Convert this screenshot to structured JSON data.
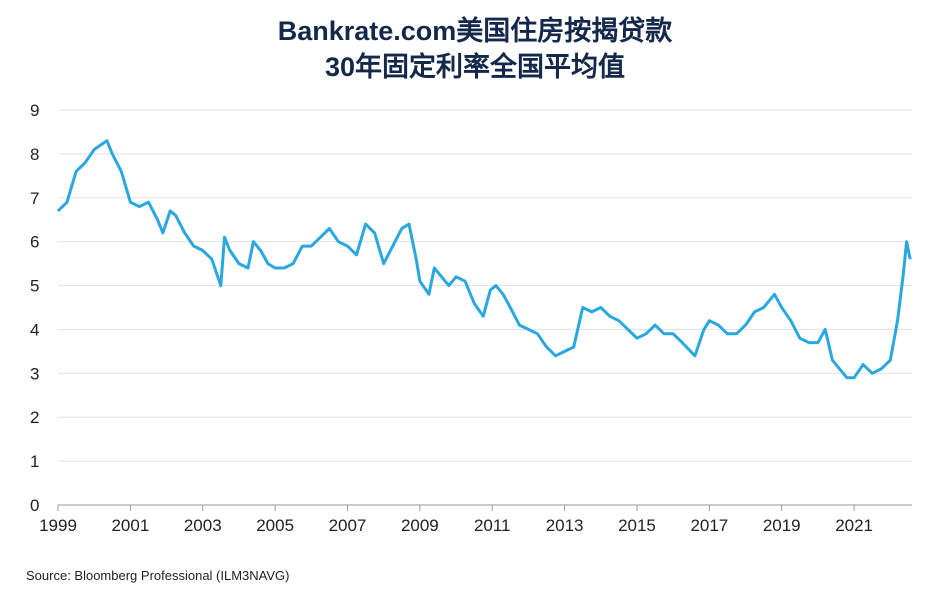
{
  "chart_data": {
    "type": "line",
    "title": [
      "Bankrate.com美国住房按揭贷款",
      "30年固定利率全国平均值"
    ],
    "source": "Source: Bloomberg Professional (ILM3NAVG)",
    "color": "#29a8e0",
    "grid": true,
    "xlim": [
      1999,
      2022.6
    ],
    "xticks": [
      1999,
      2001,
      2003,
      2005,
      2007,
      2009,
      2011,
      2013,
      2015,
      2017,
      2019,
      2021
    ],
    "ylim": [
      0,
      9
    ],
    "yticks": [
      0,
      1,
      2,
      3,
      4,
      5,
      6,
      7,
      8,
      9
    ],
    "x": [
      1999.0,
      1999.25,
      1999.5,
      1999.75,
      2000.0,
      2000.35,
      2000.5,
      2000.75,
      2001.0,
      2001.25,
      2001.5,
      2001.75,
      2001.9,
      2002.1,
      2002.25,
      2002.5,
      2002.75,
      2003.0,
      2003.25,
      2003.5,
      2003.6,
      2003.75,
      2004.0,
      2004.25,
      2004.4,
      2004.6,
      2004.8,
      2005.0,
      2005.25,
      2005.5,
      2005.75,
      2006.0,
      2006.25,
      2006.5,
      2006.75,
      2007.0,
      2007.25,
      2007.5,
      2007.75,
      2008.0,
      2008.25,
      2008.5,
      2008.7,
      2008.9,
      2009.0,
      2009.25,
      2009.4,
      2009.6,
      2009.8,
      2010.0,
      2010.25,
      2010.5,
      2010.75,
      2010.95,
      2011.1,
      2011.3,
      2011.5,
      2011.75,
      2012.0,
      2012.25,
      2012.5,
      2012.75,
      2013.0,
      2013.25,
      2013.5,
      2013.75,
      2014.0,
      2014.25,
      2014.5,
      2014.75,
      2015.0,
      2015.25,
      2015.5,
      2015.75,
      2016.0,
      2016.25,
      2016.6,
      2016.85,
      2017.0,
      2017.25,
      2017.5,
      2017.75,
      2018.0,
      2018.25,
      2018.5,
      2018.8,
      2019.0,
      2019.25,
      2019.5,
      2019.75,
      2020.0,
      2020.2,
      2020.4,
      2020.6,
      2020.8,
      2021.0,
      2021.25,
      2021.5,
      2021.75,
      2022.0,
      2022.2,
      2022.35,
      2022.45,
      2022.55
    ],
    "values": [
      6.7,
      6.9,
      7.6,
      7.8,
      8.1,
      8.3,
      8.0,
      7.6,
      6.9,
      6.8,
      6.9,
      6.5,
      6.2,
      6.7,
      6.6,
      6.2,
      5.9,
      5.8,
      5.6,
      5.0,
      6.1,
      5.8,
      5.5,
      5.4,
      6.0,
      5.8,
      5.5,
      5.4,
      5.4,
      5.5,
      5.9,
      5.9,
      6.1,
      6.3,
      6.0,
      5.9,
      5.7,
      6.4,
      6.2,
      5.5,
      5.9,
      6.3,
      6.4,
      5.6,
      5.1,
      4.8,
      5.4,
      5.2,
      5.0,
      5.2,
      5.1,
      4.6,
      4.3,
      4.9,
      5.0,
      4.8,
      4.5,
      4.1,
      4.0,
      3.9,
      3.6,
      3.4,
      3.5,
      3.6,
      4.5,
      4.4,
      4.5,
      4.3,
      4.2,
      4.0,
      3.8,
      3.9,
      4.1,
      3.9,
      3.9,
      3.7,
      3.4,
      4.0,
      4.2,
      4.1,
      3.9,
      3.9,
      4.1,
      4.4,
      4.5,
      4.8,
      4.5,
      4.2,
      3.8,
      3.7,
      3.7,
      4.0,
      3.3,
      3.1,
      2.9,
      2.9,
      3.2,
      3.0,
      3.1,
      3.3,
      4.2,
      5.2,
      6.0,
      5.6
    ]
  }
}
